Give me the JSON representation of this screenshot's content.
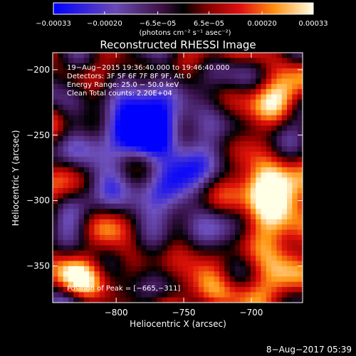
{
  "chart_data": {
    "type": "heatmap",
    "title": "Reconstructed RHESSI Image",
    "xlabel": "Heliocentric X (arcsec)",
    "ylabel": "Heliocentric Y (arcsec)",
    "xlim": [
      -847,
      -662
    ],
    "ylim": [
      -378,
      -187
    ],
    "x_ticks": [
      {
        "value": -800,
        "label": "−800"
      },
      {
        "value": -750,
        "label": "−750"
      },
      {
        "value": -700,
        "label": "−700"
      }
    ],
    "y_ticks": [
      {
        "value": -200,
        "label": "−200"
      },
      {
        "value": -250,
        "label": "−250"
      },
      {
        "value": -300,
        "label": "−300"
      },
      {
        "value": -350,
        "label": "−350"
      }
    ],
    "colorbar": {
      "range": [
        -0.00033,
        0.00033
      ],
      "ticks": [
        {
          "value": -0.00033,
          "label": "−0.00033"
        },
        {
          "value": -0.0002,
          "label": "−0.00020"
        },
        {
          "value": -6.5e-05,
          "label": "−6.5e−05"
        },
        {
          "value": 6.5e-05,
          "label": "6.5e−05"
        },
        {
          "value": 0.0002,
          "label": "0.00020"
        },
        {
          "value": 0.00033,
          "label": "0.00033"
        }
      ],
      "unit_label": "(photons cm⁻² s⁻¹ asec⁻²)"
    },
    "info_lines": [
      "19−Aug−2015 19:36:40.000 to 19:46:40.000",
      "Detectors: 3F 5F 6F 7F 8F 9F, Att 0",
      "Energy Range: 25.0 − 50.0 keV",
      "Clean     Total counts: 2.20E+04"
    ],
    "peak_label": "Position of Peak = [−665,−311]",
    "peak": {
      "x": -665,
      "y": -311
    },
    "grid": false,
    "colormap": "rhessi-3"
  },
  "footer_date": "8−Aug−2017 05:39"
}
